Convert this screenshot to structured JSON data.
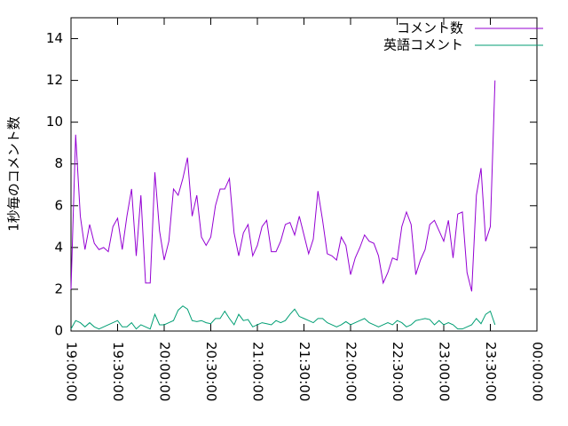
{
  "chart_data": {
    "type": "line",
    "ylabel": "1秒毎のコメント数",
    "x": [
      "19:00:00",
      "19:03:00",
      "19:06:00",
      "19:09:00",
      "19:12:00",
      "19:15:00",
      "19:18:00",
      "19:21:00",
      "19:24:00",
      "19:27:00",
      "19:30:00",
      "19:33:00",
      "19:36:00",
      "19:39:00",
      "19:42:00",
      "19:45:00",
      "19:48:00",
      "19:51:00",
      "19:54:00",
      "19:57:00",
      "20:00:00",
      "20:03:00",
      "20:06:00",
      "20:09:00",
      "20:12:00",
      "20:15:00",
      "20:18:00",
      "20:21:00",
      "20:24:00",
      "20:27:00",
      "20:30:00",
      "20:33:00",
      "20:36:00",
      "20:39:00",
      "20:42:00",
      "20:45:00",
      "20:48:00",
      "20:51:00",
      "20:54:00",
      "20:57:00",
      "21:00:00",
      "21:03:00",
      "21:06:00",
      "21:09:00",
      "21:12:00",
      "21:15:00",
      "21:18:00",
      "21:21:00",
      "21:24:00",
      "21:27:00",
      "21:30:00",
      "21:33:00",
      "21:36:00",
      "21:39:00",
      "21:42:00",
      "21:45:00",
      "21:48:00",
      "21:51:00",
      "21:54:00",
      "21:57:00",
      "22:00:00",
      "22:03:00",
      "22:06:00",
      "22:09:00",
      "22:12:00",
      "22:15:00",
      "22:18:00",
      "22:21:00",
      "22:24:00",
      "22:27:00",
      "22:30:00",
      "22:33:00",
      "22:36:00",
      "22:39:00",
      "22:42:00",
      "22:45:00",
      "22:48:00",
      "22:51:00",
      "22:54:00",
      "22:57:00",
      "23:00:00",
      "23:03:00",
      "23:06:00",
      "23:09:00",
      "23:12:00",
      "23:15:00",
      "23:18:00",
      "23:21:00",
      "23:24:00",
      "23:27:00",
      "23:30:00",
      "23:33:00"
    ],
    "series": [
      {
        "name": "コメント数",
        "color": "#9400d3",
        "values": [
          2.0,
          9.4,
          5.5,
          3.9,
          5.1,
          4.2,
          3.9,
          4.0,
          3.8,
          5.0,
          5.4,
          3.9,
          5.5,
          6.8,
          3.6,
          6.5,
          2.3,
          2.3,
          7.6,
          4.8,
          3.4,
          4.3,
          6.8,
          6.5,
          7.3,
          8.3,
          5.5,
          6.5,
          4.5,
          4.1,
          4.5,
          6.0,
          6.8,
          6.8,
          7.3,
          4.7,
          3.6,
          4.7,
          5.1,
          3.6,
          4.1,
          5.0,
          5.3,
          3.8,
          3.8,
          4.3,
          5.1,
          5.2,
          4.6,
          5.5,
          4.6,
          3.7,
          4.4,
          6.7,
          5.3,
          3.7,
          3.6,
          3.4,
          4.5,
          4.1,
          2.7,
          3.5,
          4.0,
          4.6,
          4.3,
          4.2,
          3.6,
          2.3,
          2.8,
          3.5,
          3.4,
          5.0,
          5.7,
          5.1,
          2.7,
          3.4,
          3.9,
          5.1,
          5.3,
          4.8,
          4.3,
          5.3,
          3.5,
          5.6,
          5.7,
          2.8,
          1.9,
          6.5,
          7.8,
          4.3,
          5.0,
          12.0
        ]
      },
      {
        "name": "英語コメント",
        "color": "#009e73",
        "values": [
          0.1,
          0.5,
          0.4,
          0.2,
          0.4,
          0.2,
          0.1,
          0.2,
          0.3,
          0.4,
          0.5,
          0.2,
          0.2,
          0.4,
          0.1,
          0.3,
          0.2,
          0.1,
          0.8,
          0.3,
          0.3,
          0.4,
          0.5,
          1.0,
          1.2,
          1.05,
          0.5,
          0.45,
          0.5,
          0.4,
          0.35,
          0.6,
          0.6,
          0.95,
          0.6,
          0.3,
          0.8,
          0.5,
          0.55,
          0.2,
          0.3,
          0.4,
          0.35,
          0.3,
          0.5,
          0.4,
          0.5,
          0.8,
          1.05,
          0.7,
          0.6,
          0.5,
          0.4,
          0.6,
          0.6,
          0.4,
          0.3,
          0.2,
          0.3,
          0.45,
          0.3,
          0.4,
          0.5,
          0.6,
          0.4,
          0.3,
          0.2,
          0.3,
          0.4,
          0.3,
          0.5,
          0.4,
          0.2,
          0.3,
          0.5,
          0.55,
          0.6,
          0.55,
          0.3,
          0.5,
          0.3,
          0.4,
          0.3,
          0.1,
          0.1,
          0.2,
          0.3,
          0.6,
          0.35,
          0.8,
          0.95,
          0.3
        ]
      }
    ],
    "xlim": [
      "19:00:00",
      "00:00:00"
    ],
    "xticks": [
      "19:00:00",
      "19:30:00",
      "20:00:00",
      "20:30:00",
      "21:00:00",
      "21:30:00",
      "22:00:00",
      "22:30:00",
      "23:00:00",
      "23:30:00",
      "00:00:00"
    ],
    "ylim": [
      0,
      15
    ],
    "yticks": [
      0,
      2,
      4,
      6,
      8,
      10,
      12,
      14
    ],
    "legend": "top-right"
  }
}
